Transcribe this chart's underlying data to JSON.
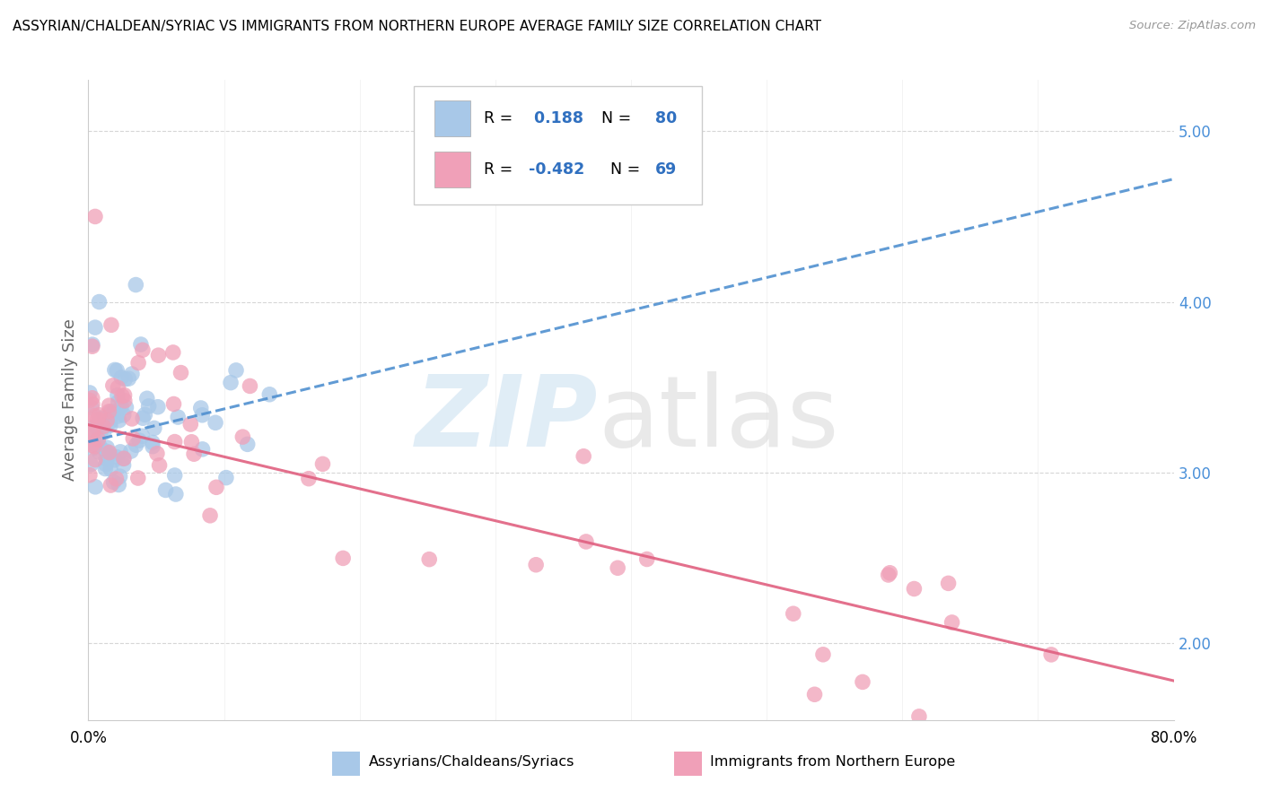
{
  "title": "ASSYRIAN/CHALDEAN/SYRIAC VS IMMIGRANTS FROM NORTHERN EUROPE AVERAGE FAMILY SIZE CORRELATION CHART",
  "source": "Source: ZipAtlas.com",
  "ylabel": "Average Family Size",
  "right_yticks": [
    5.0,
    4.0,
    3.0,
    2.0
  ],
  "legend1_label": "Assyrians/Chaldeans/Syriacs",
  "legend2_label": "Immigrants from Northern Europe",
  "R1": 0.188,
  "N1": 80,
  "R2": -0.482,
  "N2": 69,
  "color_blue": "#a8c8e8",
  "color_pink": "#f0a0b8",
  "trend_blue_color": "#5090d0",
  "trend_pink_color": "#e06080",
  "xlim": [
    0,
    80
  ],
  "ylim": [
    1.55,
    5.3
  ],
  "blue_trend_x0": 0,
  "blue_trend_y0": 3.18,
  "blue_trend_x1": 80,
  "blue_trend_y1": 4.72,
  "pink_trend_x0": 0,
  "pink_trend_y0": 3.28,
  "pink_trend_x1": 80,
  "pink_trend_y1": 1.78
}
